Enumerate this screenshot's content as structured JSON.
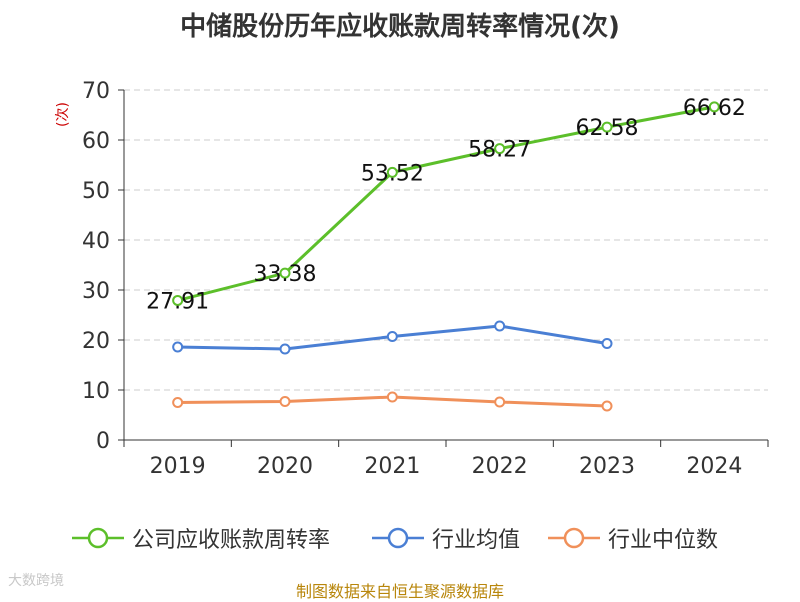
{
  "chart_data": {
    "type": "line",
    "title": "中储股份历年应收账款周转率情况(次)",
    "ylabel": "(次)",
    "xlabel": "",
    "categories": [
      "2019",
      "2020",
      "2021",
      "2022",
      "2023",
      "2024"
    ],
    "ylim": [
      0,
      70
    ],
    "yticks": [
      0,
      10,
      20,
      30,
      40,
      50,
      60,
      70
    ],
    "grid": true,
    "legend_position": "bottom",
    "series": [
      {
        "name": "公司应收账款周转率",
        "color": "#5cbf2a",
        "values": [
          27.91,
          33.38,
          53.52,
          58.27,
          62.58,
          66.62
        ],
        "labels": [
          "27.91",
          "33.38",
          "53.52",
          "58.27",
          "62.58",
          "66.62"
        ]
      },
      {
        "name": "行业均值",
        "color": "#4a7fd4",
        "values": [
          18.6,
          18.2,
          20.7,
          22.8,
          19.3,
          null
        ]
      },
      {
        "name": "行业中位数",
        "color": "#f0905a",
        "values": [
          7.5,
          7.7,
          8.6,
          7.6,
          6.8,
          null
        ]
      }
    ]
  },
  "source": "制图数据来自恒生聚源数据库",
  "watermark": "大数跨境"
}
